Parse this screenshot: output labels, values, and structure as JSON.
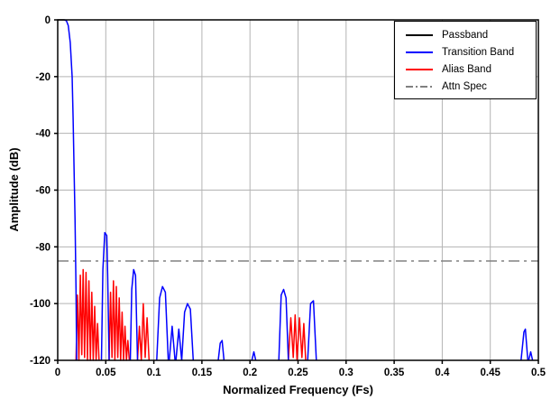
{
  "chart_data": {
    "type": "line",
    "title": "",
    "xlabel": "Normalized Frequency (Fs)",
    "ylabel": "Amplitude (dB)",
    "xlim": [
      0,
      0.5
    ],
    "ylim": [
      -120,
      0
    ],
    "xticks": [
      "0",
      "0.05",
      "0.1",
      "0.15",
      "0.2",
      "0.25",
      "0.3",
      "0.35",
      "0.4",
      "0.45",
      "0.5"
    ],
    "yticks": [
      "0",
      "-20",
      "-40",
      "-60",
      "-80",
      "-100",
      "-120"
    ],
    "grid": true,
    "legend_position": "top-right",
    "colors": {
      "grid": "#b3b3b3",
      "axis": "#000000"
    },
    "series": [
      {
        "name": "Passband",
        "color": "#000000",
        "style": "solid",
        "segments": [
          [
            [
              0,
              0
            ],
            [
              0.007,
              0
            ]
          ]
        ]
      },
      {
        "name": "Transition Band",
        "color": "#0000ff",
        "style": "solid",
        "segments": [
          [
            [
              0.007,
              0
            ],
            [
              0.009,
              -0.3
            ],
            [
              0.011,
              -2
            ],
            [
              0.013,
              -8
            ],
            [
              0.015,
              -20
            ],
            [
              0.016,
              -35
            ],
            [
              0.017,
              -52
            ],
            [
              0.018,
              -70
            ],
            [
              0.019,
              -95
            ],
            [
              0.0197,
              -120
            ]
          ],
          [
            [
              0.0455,
              -120
            ],
            [
              0.047,
              -88
            ],
            [
              0.049,
              -75
            ],
            [
              0.051,
              -76
            ],
            [
              0.052,
              -90
            ],
            [
              0.0535,
              -120
            ]
          ],
          [
            [
              0.0755,
              -120
            ],
            [
              0.077,
              -95
            ],
            [
              0.079,
              -88
            ],
            [
              0.081,
              -90
            ],
            [
              0.083,
              -120
            ]
          ],
          [
            [
              0.103,
              -120
            ],
            [
              0.106,
              -98
            ],
            [
              0.109,
              -94
            ],
            [
              0.112,
              -96
            ],
            [
              0.115,
              -120
            ]
          ],
          [
            [
              0.116,
              -120
            ],
            [
              0.119,
              -108
            ],
            [
              0.122,
              -120
            ]
          ],
          [
            [
              0.123,
              -120
            ],
            [
              0.126,
              -109
            ],
            [
              0.129,
              -120
            ]
          ],
          [
            [
              0.129,
              -120
            ],
            [
              0.132,
              -103
            ],
            [
              0.135,
              -100
            ],
            [
              0.138,
              -102
            ],
            [
              0.141,
              -120
            ]
          ],
          [
            [
              0.167,
              -120
            ],
            [
              0.169,
              -114
            ],
            [
              0.171,
              -113
            ],
            [
              0.173,
              -120
            ]
          ],
          [
            [
              0.202,
              -120
            ],
            [
              0.204,
              -117
            ],
            [
              0.206,
              -120
            ]
          ],
          [
            [
              0.23,
              -120
            ],
            [
              0.2325,
              -97
            ],
            [
              0.235,
              -95
            ],
            [
              0.2375,
              -98
            ],
            [
              0.24,
              -120
            ]
          ],
          [
            [
              0.26,
              -120
            ],
            [
              0.263,
              -100
            ],
            [
              0.266,
              -99
            ],
            [
              0.269,
              -120
            ]
          ],
          [
            [
              0.482,
              -120
            ],
            [
              0.485,
              -110
            ],
            [
              0.4865,
              -109
            ],
            [
              0.489,
              -120
            ]
          ],
          [
            [
              0.49,
              -120
            ],
            [
              0.492,
              -117
            ],
            [
              0.494,
              -120
            ]
          ]
        ]
      },
      {
        "name": "Alias Band",
        "color": "#ff0000",
        "style": "solid",
        "segments": [
          [
            [
              0.019,
              -120
            ],
            [
              0.0205,
              -97
            ],
            [
              0.022,
              -120
            ],
            [
              0.0235,
              -90
            ],
            [
              0.025,
              -118
            ],
            [
              0.0265,
              -88
            ],
            [
              0.028,
              -119
            ],
            [
              0.0295,
              -89
            ],
            [
              0.031,
              -120
            ],
            [
              0.0325,
              -92
            ],
            [
              0.034,
              -120
            ],
            [
              0.0355,
              -96
            ],
            [
              0.037,
              -120
            ],
            [
              0.0385,
              -101
            ],
            [
              0.04,
              -120
            ],
            [
              0.0415,
              -107
            ],
            [
              0.043,
              -120
            ]
          ],
          [
            [
              0.0535,
              -120
            ],
            [
              0.055,
              -96
            ],
            [
              0.0565,
              -119
            ],
            [
              0.058,
              -92
            ],
            [
              0.0595,
              -120
            ],
            [
              0.061,
              -94
            ],
            [
              0.0625,
              -119
            ],
            [
              0.064,
              -98
            ],
            [
              0.0655,
              -120
            ],
            [
              0.067,
              -103
            ],
            [
              0.0685,
              -120
            ],
            [
              0.07,
              -108
            ],
            [
              0.0715,
              -120
            ],
            [
              0.073,
              -113
            ],
            [
              0.0745,
              -120
            ]
          ],
          [
            [
              0.083,
              -120
            ],
            [
              0.085,
              -108
            ],
            [
              0.087,
              -120
            ],
            [
              0.089,
              -100
            ],
            [
              0.091,
              -119
            ],
            [
              0.093,
              -105
            ],
            [
              0.095,
              -120
            ]
          ],
          [
            [
              0.24,
              -120
            ],
            [
              0.2425,
              -105
            ],
            [
              0.245,
              -119
            ],
            [
              0.247,
              -104
            ],
            [
              0.249,
              -120
            ],
            [
              0.2515,
              -105
            ],
            [
              0.254,
              -119
            ],
            [
              0.256,
              -107
            ],
            [
              0.258,
              -120
            ]
          ]
        ]
      },
      {
        "name": "Attn Spec",
        "color": "#808080",
        "style": "dashdot",
        "segments": [
          [
            [
              0,
              -85
            ],
            [
              0.5,
              -85
            ]
          ]
        ]
      }
    ]
  }
}
